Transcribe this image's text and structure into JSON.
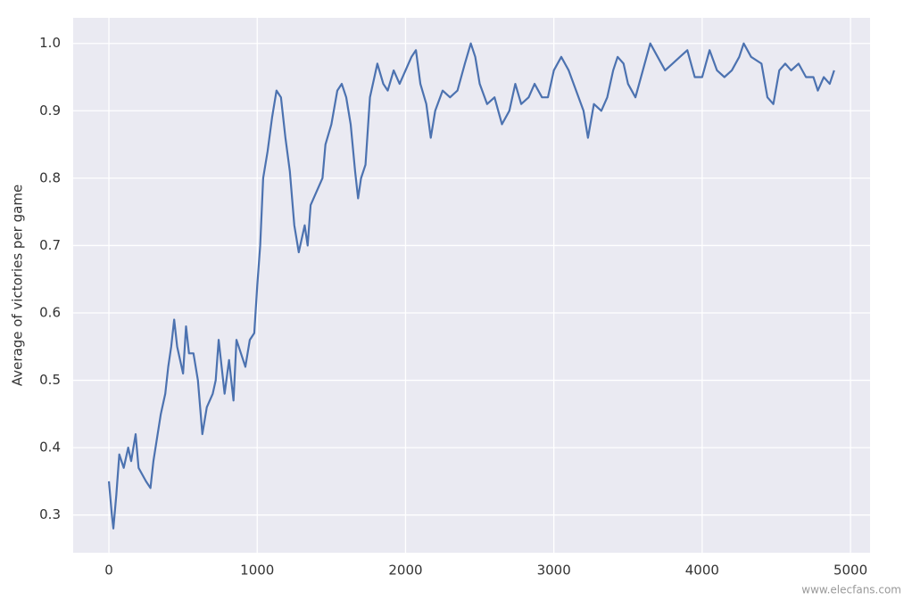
{
  "chart_data": {
    "type": "line",
    "y_label": "Average of victories per game",
    "watermark": "www.elecfans.com",
    "x": [
      0,
      20,
      30,
      50,
      70,
      100,
      130,
      150,
      180,
      200,
      250,
      280,
      300,
      350,
      380,
      400,
      420,
      440,
      460,
      480,
      500,
      520,
      540,
      570,
      600,
      630,
      660,
      700,
      720,
      740,
      760,
      780,
      810,
      840,
      860,
      890,
      920,
      950,
      980,
      1000,
      1020,
      1040,
      1070,
      1100,
      1130,
      1160,
      1190,
      1220,
      1250,
      1280,
      1320,
      1340,
      1360,
      1400,
      1440,
      1460,
      1500,
      1540,
      1570,
      1600,
      1630,
      1660,
      1680,
      1700,
      1730,
      1760,
      1790,
      1810,
      1850,
      1880,
      1920,
      1960,
      2000,
      2040,
      2070,
      2100,
      2140,
      2170,
      2200,
      2250,
      2300,
      2350,
      2400,
      2440,
      2470,
      2500,
      2550,
      2600,
      2650,
      2700,
      2740,
      2780,
      2830,
      2870,
      2920,
      2960,
      3000,
      3050,
      3100,
      3150,
      3200,
      3230,
      3270,
      3320,
      3360,
      3400,
      3430,
      3470,
      3500,
      3550,
      3600,
      3650,
      3700,
      3750,
      3800,
      3850,
      3900,
      3950,
      4000,
      4050,
      4100,
      4150,
      4200,
      4250,
      4280,
      4330,
      4400,
      4440,
      4480,
      4520,
      4560,
      4600,
      4650,
      4700,
      4750,
      4780,
      4820,
      4860,
      4890
    ],
    "series": [
      {
        "color": "#4c72b0",
        "values": [
          0.35,
          0.3,
          0.28,
          0.33,
          0.39,
          0.37,
          0.4,
          0.38,
          0.42,
          0.37,
          0.35,
          0.34,
          0.38,
          0.45,
          0.48,
          0.52,
          0.55,
          0.59,
          0.55,
          0.53,
          0.51,
          0.58,
          0.54,
          0.54,
          0.5,
          0.42,
          0.46,
          0.48,
          0.5,
          0.56,
          0.52,
          0.48,
          0.53,
          0.47,
          0.56,
          0.54,
          0.52,
          0.56,
          0.57,
          0.64,
          0.7,
          0.8,
          0.84,
          0.89,
          0.93,
          0.92,
          0.86,
          0.81,
          0.73,
          0.69,
          0.73,
          0.7,
          0.76,
          0.78,
          0.8,
          0.85,
          0.88,
          0.93,
          0.94,
          0.92,
          0.88,
          0.81,
          0.77,
          0.8,
          0.82,
          0.92,
          0.95,
          0.97,
          0.94,
          0.93,
          0.96,
          0.94,
          0.96,
          0.98,
          0.99,
          0.94,
          0.91,
          0.86,
          0.9,
          0.93,
          0.92,
          0.93,
          0.97,
          1.0,
          0.98,
          0.94,
          0.91,
          0.92,
          0.88,
          0.9,
          0.94,
          0.91,
          0.92,
          0.94,
          0.92,
          0.92,
          0.96,
          0.98,
          0.96,
          0.93,
          0.9,
          0.86,
          0.91,
          0.9,
          0.92,
          0.96,
          0.98,
          0.97,
          0.94,
          0.92,
          0.96,
          1.0,
          0.98,
          0.96,
          0.97,
          0.98,
          0.99,
          0.95,
          0.95,
          0.99,
          0.96,
          0.95,
          0.96,
          0.98,
          1.0,
          0.98,
          0.97,
          0.92,
          0.91,
          0.96,
          0.97,
          0.96,
          0.97,
          0.95,
          0.95,
          0.93,
          0.95,
          0.94,
          0.96
        ]
      }
    ],
    "xlim": [
      -241,
      5132
    ],
    "ylim": [
      0.244,
      1.038
    ],
    "xticks": [
      0,
      1000,
      2000,
      3000,
      4000,
      5000
    ],
    "yticks": [
      {
        "value": 0.3,
        "label": "0.3"
      },
      {
        "value": 0.4,
        "label": "0.4"
      },
      {
        "value": 0.5,
        "label": "0.5"
      },
      {
        "value": 0.6,
        "label": "0.6"
      },
      {
        "value": 0.7,
        "label": "0.7"
      },
      {
        "value": 0.8,
        "label": "0.8"
      },
      {
        "value": 0.9,
        "label": "0.9"
      },
      {
        "value": 1.0,
        "label": "1.0"
      }
    ],
    "grid": true
  }
}
